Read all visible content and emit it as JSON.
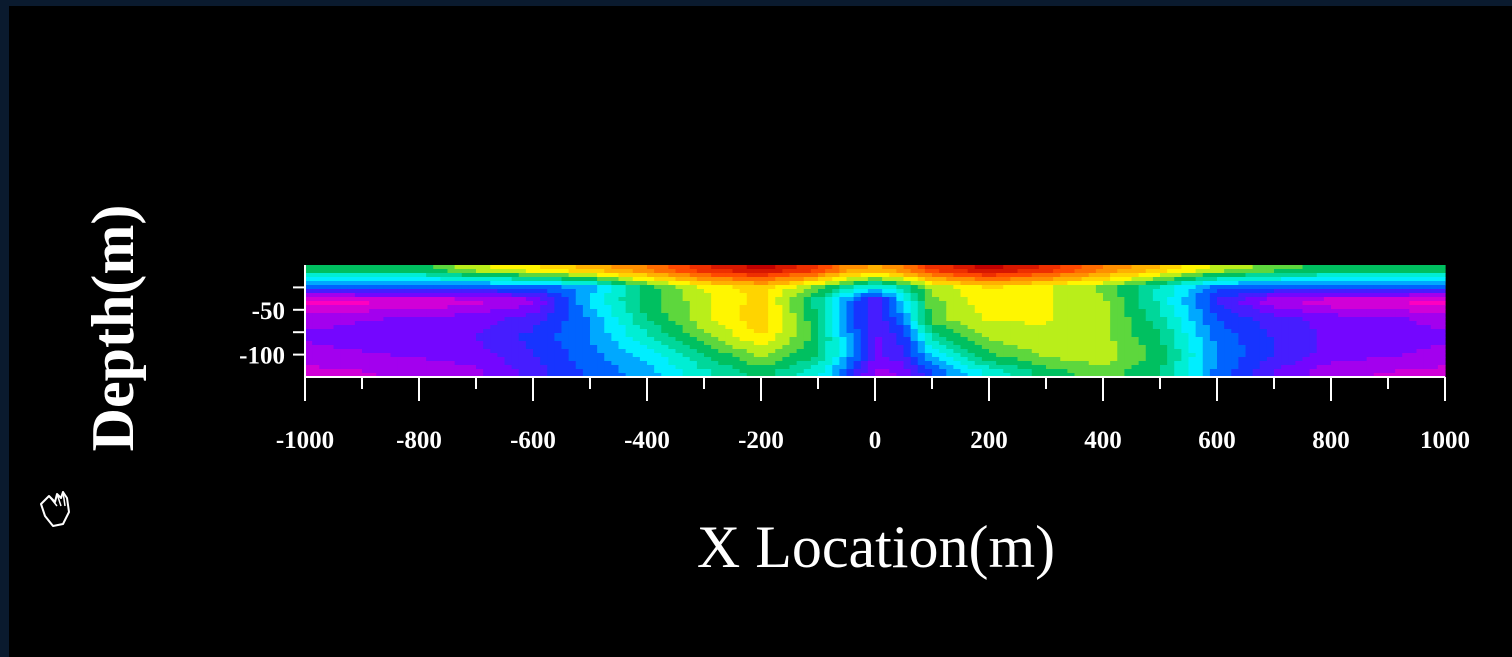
{
  "chart_data": {
    "type": "heatmap",
    "title": "",
    "xlabel": "X Location(m)",
    "ylabel": "Depth(m)",
    "xlim": [
      -1000,
      1000
    ],
    "ylim": [
      -125,
      0
    ],
    "x_ticks": [
      -1000,
      -800,
      -600,
      -400,
      -200,
      0,
      200,
      400,
      600,
      800,
      1000
    ],
    "x_tick_labels": [
      "-1000",
      "-800",
      "-600",
      "-400",
      "-200",
      "0",
      "200",
      "400",
      "600",
      "800",
      "1000"
    ],
    "y_ticks": [
      -50,
      -100
    ],
    "y_tick_labels": [
      "-50",
      "-100"
    ],
    "colormap": [
      "#ff00c0",
      "#8000ff",
      "#0040ff",
      "#00ffff",
      "#00c060",
      "#ffff00",
      "#ffa000",
      "#ff4000",
      "#c00000"
    ],
    "grid": false,
    "legend": "none",
    "field_samples": {
      "x": [
        -1000,
        -800,
        -700,
        -600,
        -500,
        -400,
        -300,
        -200,
        -100,
        -50,
        0,
        50,
        100,
        200,
        300,
        400,
        500,
        550,
        600,
        700,
        800,
        1000
      ],
      "depth": [
        -5,
        -25,
        -40,
        -60,
        -80,
        -100,
        -120
      ],
      "values": [
        [
          0.5,
          0.5,
          0.6,
          0.65,
          0.72,
          0.8,
          0.92,
          1.0,
          0.9,
          0.78,
          0.74,
          0.8,
          0.9,
          1.0,
          0.92,
          0.8,
          0.7,
          0.65,
          0.6,
          0.55,
          0.5,
          0.5
        ],
        [
          0.25,
          0.25,
          0.25,
          0.26,
          0.32,
          0.5,
          0.62,
          0.68,
          0.55,
          0.45,
          0.38,
          0.45,
          0.58,
          0.66,
          0.62,
          0.55,
          0.42,
          0.35,
          0.27,
          0.25,
          0.25,
          0.25
        ],
        [
          0.0,
          0.02,
          0.05,
          0.1,
          0.35,
          0.5,
          0.6,
          0.68,
          0.45,
          0.3,
          0.15,
          0.35,
          0.55,
          0.65,
          0.62,
          0.58,
          0.42,
          0.32,
          0.2,
          0.08,
          0.03,
          0.0
        ],
        [
          0.1,
          0.12,
          0.14,
          0.18,
          0.3,
          0.48,
          0.6,
          0.7,
          0.48,
          0.3,
          0.15,
          0.3,
          0.55,
          0.62,
          0.62,
          0.58,
          0.45,
          0.35,
          0.25,
          0.18,
          0.14,
          0.1
        ],
        [
          0.12,
          0.14,
          0.16,
          0.22,
          0.3,
          0.42,
          0.55,
          0.66,
          0.5,
          0.32,
          0.15,
          0.22,
          0.45,
          0.58,
          0.6,
          0.58,
          0.48,
          0.38,
          0.28,
          0.2,
          0.15,
          0.12
        ],
        [
          0.1,
          0.12,
          0.14,
          0.2,
          0.28,
          0.36,
          0.48,
          0.58,
          0.48,
          0.34,
          0.15,
          0.2,
          0.35,
          0.52,
          0.58,
          0.6,
          0.5,
          0.4,
          0.3,
          0.2,
          0.14,
          0.1
        ],
        [
          0.05,
          0.08,
          0.1,
          0.18,
          0.26,
          0.32,
          0.42,
          0.5,
          0.4,
          0.25,
          0.1,
          0.12,
          0.25,
          0.4,
          0.5,
          0.55,
          0.48,
          0.38,
          0.28,
          0.16,
          0.08,
          0.05
        ]
      ]
    }
  },
  "icons": {
    "pointer": "hand-pointer-icon"
  }
}
